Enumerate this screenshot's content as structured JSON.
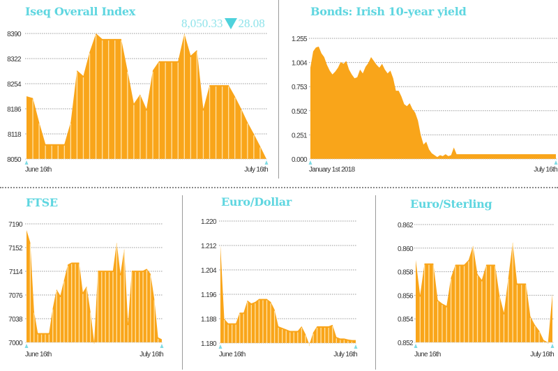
{
  "colors": {
    "fill": "#f9a51a",
    "title": "#5fd6e0",
    "marker": "#7fdbe4",
    "grid": "#999999"
  },
  "chart_data": [
    {
      "id": "iseq",
      "type": "area",
      "title": "Iseq Overall Index",
      "headline": {
        "value": "8,050.33",
        "direction": "down",
        "change": "28.08"
      },
      "xlabel_start": "June 16th",
      "xlabel_end": "July 16th",
      "yticks": [
        "8390",
        "8322",
        "8254",
        "8186",
        "8118",
        "8050"
      ],
      "ylim": [
        8050,
        8390
      ],
      "values": [
        8220,
        8215,
        8150,
        8090,
        8090,
        8090,
        8090,
        8150,
        8290,
        8275,
        8340,
        8390,
        8375,
        8375,
        8375,
        8375,
        8290,
        8200,
        8225,
        8185,
        8290,
        8315,
        8315,
        8315,
        8315,
        8390,
        8330,
        8345,
        8185,
        8250,
        8250,
        8250,
        8250,
        8220,
        8186,
        8150,
        8118,
        8085,
        8050
      ]
    },
    {
      "id": "bonds",
      "type": "area",
      "title": "Bonds: Irish 10-year yield",
      "xlabel_start": "January 1st 2018",
      "xlabel_end": "July 16th",
      "yticks": [
        "1.255",
        "1.004",
        "0.753",
        "0.502",
        "0.251",
        "0.000"
      ],
      "ylim": [
        0,
        1.255
      ],
      "values": [
        0.95,
        1.12,
        1.16,
        1.17,
        1.1,
        1.06,
        0.98,
        0.92,
        0.88,
        0.91,
        0.95,
        1.01,
        0.99,
        1.02,
        0.93,
        0.88,
        0.84,
        0.85,
        0.93,
        0.89,
        0.96,
        1.0,
        1.06,
        1.02,
        0.98,
        0.95,
        0.99,
        0.93,
        0.89,
        0.92,
        0.84,
        0.71,
        0.71,
        0.65,
        0.57,
        0.55,
        0.58,
        0.52,
        0.48,
        0.4,
        0.25,
        0.15,
        0.18,
        0.1,
        0.06,
        0.04,
        0.02,
        0.04,
        0.03,
        0.05,
        0.03,
        0.04,
        0.12,
        0.05,
        0.05,
        0.05,
        0.05,
        0.05,
        0.05,
        0.05,
        0.05,
        0.05,
        0.05,
        0.05,
        0.05,
        0.05,
        0.05,
        0.05,
        0.05,
        0.05,
        0.05,
        0.05,
        0.05,
        0.05,
        0.05,
        0.05,
        0.05,
        0.05,
        0.05,
        0.05,
        0.05,
        0.05,
        0.05,
        0.05,
        0.05,
        0.05,
        0.05,
        0.05,
        0.05,
        0.05
      ]
    },
    {
      "id": "ftse",
      "type": "area",
      "title": "FTSE",
      "xlabel_start": "June 16th",
      "xlabel_end": "July 16th",
      "yticks": [
        "7190",
        "7152",
        "7114",
        "7076",
        "7038",
        "7000"
      ],
      "ylim": [
        7000,
        7190
      ],
      "values": [
        7180,
        7160,
        7050,
        7015,
        7015,
        7015,
        7015,
        7055,
        7085,
        7075,
        7100,
        7125,
        7128,
        7128,
        7128,
        7080,
        7090,
        7050,
        7000,
        7115,
        7115,
        7115,
        7115,
        7115,
        7160,
        7110,
        7150,
        7030,
        7115,
        7115,
        7115,
        7115,
        7118,
        7110,
        7070,
        7008,
        7005
      ]
    },
    {
      "id": "eurodollar",
      "type": "area",
      "title": "Euro/Dollar",
      "xlabel_start": "June 16th",
      "xlabel_end": "July 16th",
      "yticks": [
        "1.220",
        "1.212",
        "1.204",
        "1.196",
        "1.188",
        "1.180"
      ],
      "ylim": [
        1.18,
        1.22
      ],
      "values": [
        1.212,
        1.188,
        1.1865,
        1.1865,
        1.1865,
        1.19,
        1.19,
        1.194,
        1.193,
        1.1935,
        1.1945,
        1.1945,
        1.1945,
        1.1935,
        1.191,
        1.1855,
        1.185,
        1.1845,
        1.184,
        1.184,
        1.184,
        1.1855,
        1.183,
        1.1795,
        1.1835,
        1.1855,
        1.1855,
        1.1855,
        1.1855,
        1.186,
        1.182,
        1.1815,
        1.1815,
        1.1812,
        1.181,
        1.181
      ]
    },
    {
      "id": "eurosterling",
      "type": "area",
      "title": "Euro/Sterling",
      "xlabel_start": "June 16th",
      "xlabel_end": "July 16th",
      "yticks": [
        "0.862",
        "0.860",
        "0.858",
        "0.856",
        "0.854",
        "0.852"
      ],
      "ylim": [
        0.852,
        0.862
      ],
      "values": [
        0.859,
        0.856,
        0.8587,
        0.8587,
        0.8587,
        0.8556,
        0.8553,
        0.8551,
        0.8575,
        0.8586,
        0.8586,
        0.8586,
        0.859,
        0.8602,
        0.8578,
        0.8573,
        0.8586,
        0.8586,
        0.8586,
        0.856,
        0.8545,
        0.8575,
        0.8605,
        0.857,
        0.857,
        0.857,
        0.8542,
        0.8535,
        0.853,
        0.8522,
        0.852,
        0.8561
      ]
    }
  ]
}
